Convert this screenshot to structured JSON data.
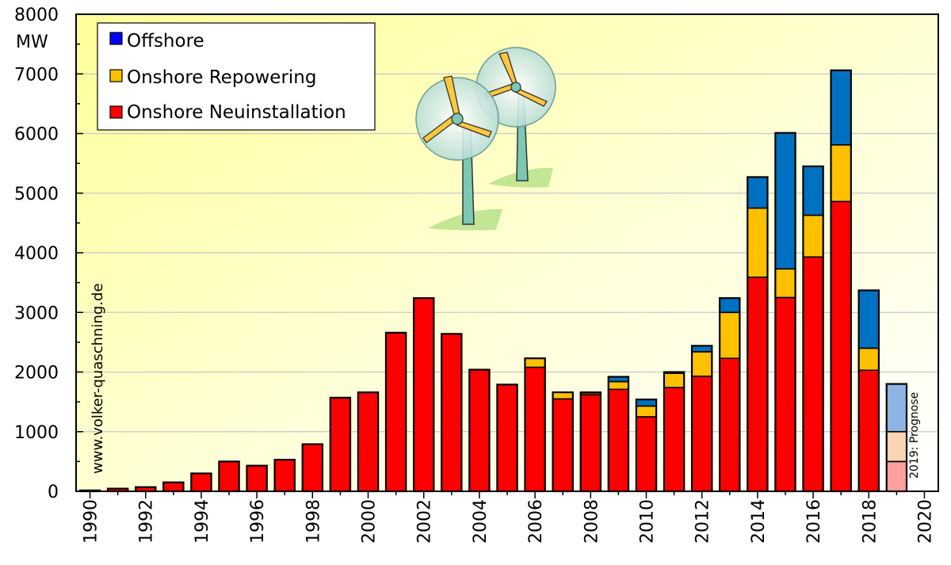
{
  "chart_data": {
    "type": "bar",
    "stacked": true,
    "ylabel_unit": "MW",
    "ylim": [
      0,
      8000
    ],
    "yticks": [
      0,
      1000,
      2000,
      3000,
      4000,
      5000,
      6000,
      7000,
      8000
    ],
    "xlim": [
      1990,
      2020
    ],
    "xticks": [
      1990,
      1992,
      1994,
      1996,
      1998,
      2000,
      2002,
      2004,
      2006,
      2008,
      2010,
      2012,
      2014,
      2016,
      2018,
      2020
    ],
    "categories": [
      1990,
      1991,
      1992,
      1993,
      1994,
      1995,
      1996,
      1997,
      1998,
      1999,
      2000,
      2001,
      2002,
      2003,
      2004,
      2005,
      2006,
      2007,
      2008,
      2009,
      2010,
      2011,
      2012,
      2013,
      2014,
      2015,
      2016,
      2017,
      2018,
      2019
    ],
    "series": [
      {
        "name": "Onshore Neuinstallation",
        "color": "#ff0000",
        "values": [
          15,
          45,
          70,
          150,
          300,
          500,
          430,
          530,
          790,
          1570,
          1660,
          2660,
          3240,
          2640,
          2040,
          1790,
          2080,
          1550,
          1620,
          1710,
          1250,
          1740,
          1930,
          2230,
          3590,
          3250,
          3930,
          4860,
          2030,
          500
        ]
      },
      {
        "name": "Onshore Repowering",
        "color": "#ffc000",
        "values": [
          0,
          0,
          0,
          0,
          0,
          0,
          0,
          0,
          0,
          0,
          0,
          0,
          0,
          0,
          0,
          0,
          150,
          110,
          30,
          130,
          180,
          240,
          410,
          770,
          1160,
          480,
          700,
          950,
          370,
          500
        ]
      },
      {
        "name": "Offshore",
        "color": "#0000ff",
        "values": [
          0,
          0,
          0,
          0,
          0,
          0,
          0,
          0,
          0,
          0,
          0,
          0,
          0,
          0,
          0,
          0,
          0,
          0,
          10,
          80,
          110,
          20,
          100,
          240,
          520,
          2280,
          820,
          1250,
          970,
          800
        ]
      }
    ],
    "offshore_bar_color": "#0070c0",
    "prognosis_colors": [
      "#ffa0a0",
      "#fcd5b5",
      "#8db4e2"
    ],
    "prognosis_label": "2019: Prognose",
    "watermark": "www.volker-quaschning.de",
    "legend_position": "top-left",
    "grid": true
  }
}
